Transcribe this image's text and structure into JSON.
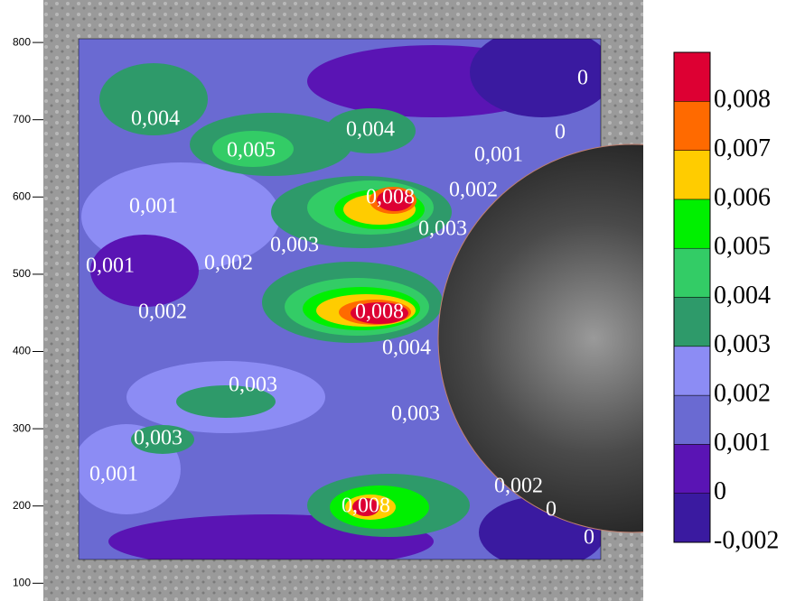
{
  "chart_data": {
    "type": "contour",
    "ylim": [
      77,
      855
    ],
    "yticks": [
      100,
      200,
      300,
      400,
      500,
      600,
      700,
      800
    ],
    "contour_labels": [
      "0,004",
      "0,005",
      "0,004",
      "0",
      "0",
      "0,001",
      "0,002",
      "0,008",
      "0,001",
      "0,003",
      "0,003",
      "0,002",
      "0,001",
      "0,002",
      "0,008",
      "0,004",
      "0,003",
      "0,003",
      "0,003",
      "0,001",
      "0,002",
      "0,008",
      "0",
      "0"
    ],
    "colorbar": {
      "ticks": [
        {
          "value": -0.002,
          "label": "-0,002"
        },
        0,
        {
          "value": 0.001,
          "label": "0,001"
        },
        {
          "value": 0.002,
          "label": "0,002"
        },
        {
          "value": 0.003,
          "label": "0,003"
        },
        {
          "value": 0.004,
          "label": "0,004"
        },
        {
          "value": 0.005,
          "label": "0,005"
        },
        {
          "value": 0.006,
          "label": "0,006"
        },
        {
          "value": 0.007,
          "label": "0,007"
        },
        {
          "value": 0.008,
          "label": "0,008"
        }
      ],
      "colors": [
        "#3a1aa0",
        "#5a14b4",
        "#6a6ad2",
        "#8c8cf4",
        "#2e9a6a",
        "#33cc66",
        "#00f000",
        "#ffcc00",
        "#ff6a00",
        "#dd0033"
      ]
    }
  }
}
